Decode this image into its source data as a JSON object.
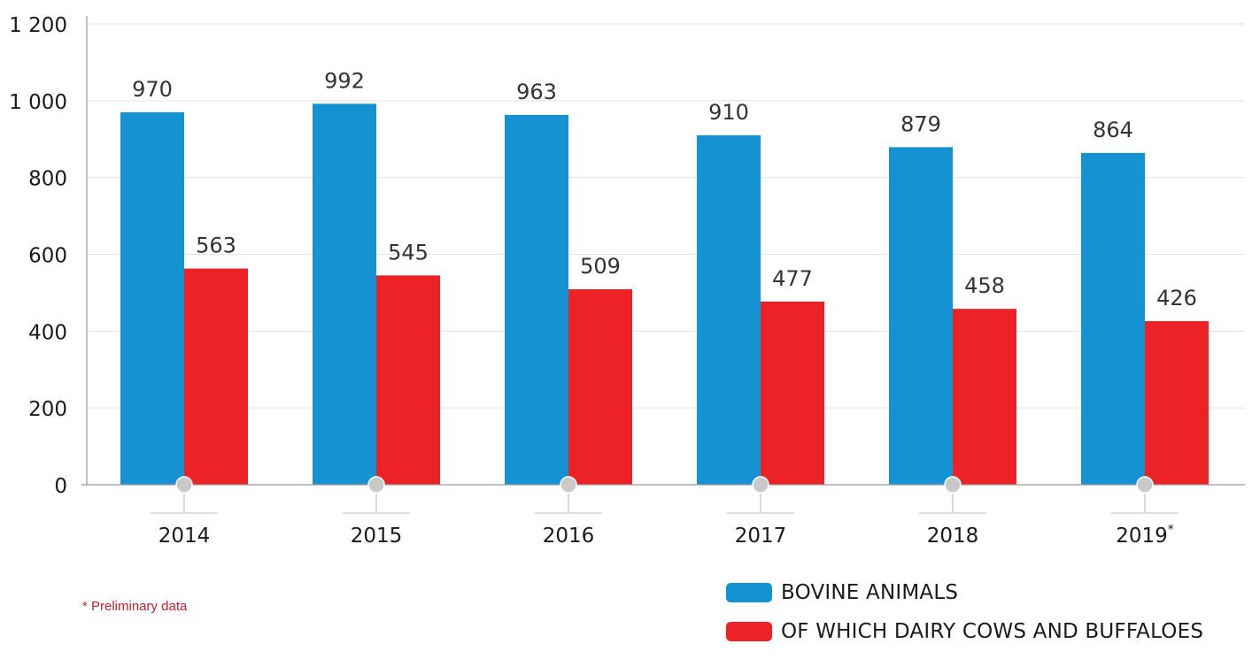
{
  "chart_data": {
    "type": "bar",
    "categories": [
      "2014",
      "2015",
      "2016",
      "2017",
      "2018",
      "2019"
    ],
    "category_marks": [
      "",
      "",
      "",
      "",
      "",
      "*"
    ],
    "series": [
      {
        "name": "BOVINE ANIMALS",
        "color": "#1592d2",
        "values": [
          970,
          992,
          963,
          910,
          879,
          864
        ]
      },
      {
        "name": "OF WHICH DAIRY COWS AND BUFFALOES",
        "color": "#ed2227",
        "values": [
          563,
          545,
          509,
          477,
          458,
          426
        ]
      }
    ],
    "y_ticks": [
      "0",
      "200",
      "400",
      "600",
      "800",
      "1 000",
      "1 200"
    ],
    "ylim": [
      0,
      1200
    ],
    "grid": true,
    "legend_position": "bottom-right",
    "footnote": "* Preliminary data"
  }
}
